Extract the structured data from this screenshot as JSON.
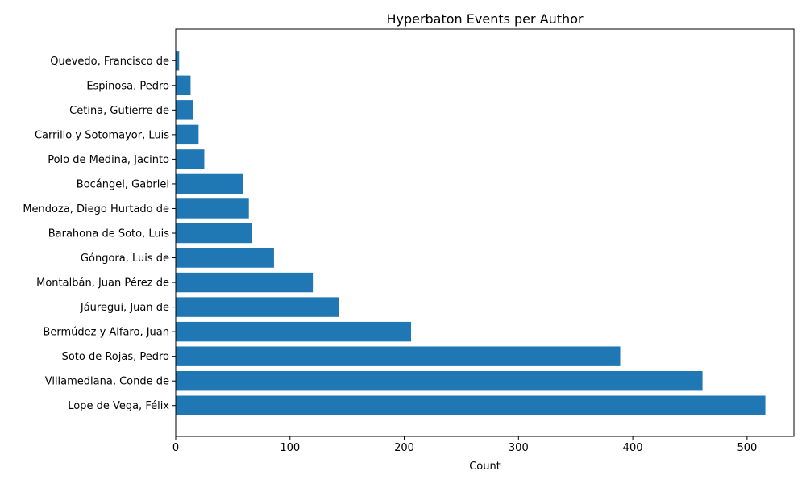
{
  "chart_data": {
    "type": "bar",
    "orientation": "horizontal",
    "title": "Hyperbaton Events per Author",
    "xlabel": "Count",
    "ylabel": "",
    "xlim": [
      0,
      541
    ],
    "xticks": [
      0,
      100,
      200,
      300,
      400,
      500
    ],
    "grid": false,
    "bar_color": "#1f77b4",
    "categories": [
      "Lope de Vega, Félix",
      "Villamediana, Conde de",
      "Soto de Rojas, Pedro",
      "Bermúdez y Alfaro, Juan",
      "Jáuregui, Juan de",
      "Montalbán, Juan Pérez de",
      "Góngora, Luis de",
      "Barahona de Soto, Luis",
      "Mendoza, Diego Hurtado de",
      "Bocángel, Gabriel",
      "Polo de Medina, Jacinto",
      "Carrillo y Sotomayor, Luis",
      "Cetina, Gutierre de",
      "Espinosa, Pedro",
      "Quevedo, Francisco de"
    ],
    "values": [
      516,
      461,
      389,
      206,
      143,
      120,
      86,
      67,
      64,
      59,
      25,
      20,
      15,
      13,
      3
    ]
  }
}
